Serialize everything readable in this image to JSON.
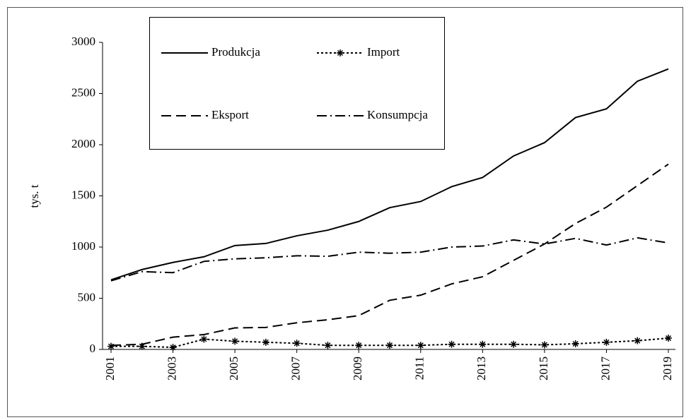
{
  "chart_data": {
    "type": "line",
    "y_label": "tys. t",
    "x": [
      2001,
      2002,
      2003,
      2004,
      2005,
      2006,
      2007,
      2008,
      2009,
      2010,
      2011,
      2012,
      2013,
      2014,
      2015,
      2016,
      2017,
      2018,
      2019
    ],
    "xlim": [
      2001,
      2019
    ],
    "xticks": [
      2001,
      2003,
      2005,
      2007,
      2009,
      2011,
      2013,
      2015,
      2017,
      2019
    ],
    "ylim": [
      0,
      3000
    ],
    "yticks": [
      0,
      500,
      1000,
      1500,
      2000,
      2500,
      3000
    ],
    "grid": false,
    "legend": "top-left",
    "series": [
      {
        "name": "Produkcja",
        "color": "#000000",
        "line_style": "solid",
        "values": [
          680,
          780,
          850,
          905,
          1015,
          1035,
          1110,
          1165,
          1250,
          1385,
          1445,
          1590,
          1680,
          1890,
          2020,
          2265,
          2350,
          2620,
          2740
        ]
      },
      {
        "name": "Import",
        "color": "#000000",
        "line_style": "dotted",
        "marker": "asterisk",
        "values": [
          30,
          30,
          20,
          100,
          80,
          70,
          60,
          40,
          40,
          40,
          40,
          50,
          50,
          50,
          45,
          55,
          70,
          85,
          110
        ]
      },
      {
        "name": "Eksport",
        "color": "#000000",
        "line_style": "dashed",
        "values": [
          40,
          50,
          120,
          145,
          210,
          215,
          260,
          290,
          330,
          480,
          530,
          640,
          710,
          870,
          1030,
          1230,
          1390,
          1600,
          1810
        ]
      },
      {
        "name": "Konsumpcja",
        "color": "#000000",
        "line_style": "dashdot",
        "values": [
          670,
          760,
          750,
          860,
          885,
          895,
          915,
          910,
          950,
          940,
          950,
          1000,
          1010,
          1070,
          1030,
          1085,
          1020,
          1090,
          1040
        ]
      }
    ]
  }
}
